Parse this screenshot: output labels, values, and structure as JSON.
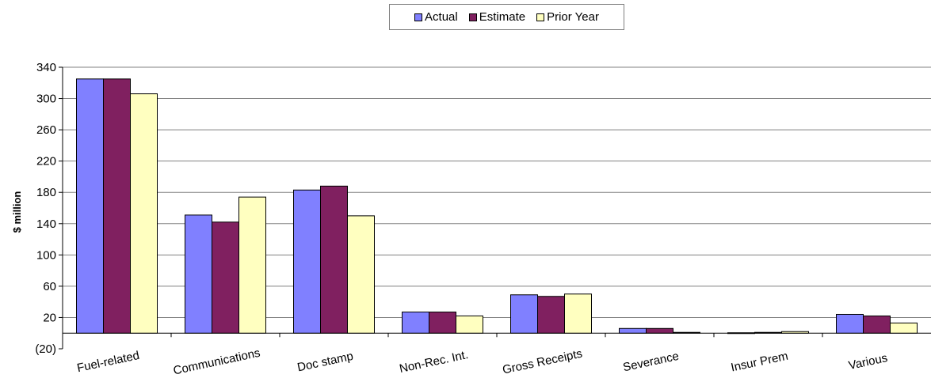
{
  "chart_data": {
    "type": "bar",
    "title": "",
    "xlabel": "",
    "ylabel": "$ million",
    "ylim": [
      -20,
      340
    ],
    "yticks": [
      -20,
      20,
      60,
      100,
      140,
      180,
      220,
      260,
      300,
      340
    ],
    "ytick_labels": [
      "(20)",
      "20",
      "60",
      "100",
      "140",
      "180",
      "220",
      "260",
      "300",
      "340"
    ],
    "grid": "horizontal",
    "legend_position": "top",
    "categories": [
      "Fuel-related",
      "Communications",
      "Doc stamp",
      "Non-Rec. Int.",
      "Gross Receipts",
      "Severance",
      "Insur Prem",
      "Various"
    ],
    "series": [
      {
        "name": "Actual",
        "color": "#8080FF",
        "values": [
          325,
          151,
          183,
          27,
          49,
          6,
          0.5,
          24
        ]
      },
      {
        "name": "Estimate",
        "color": "#802060",
        "values": [
          325,
          142,
          188,
          27,
          47,
          6,
          1,
          22
        ]
      },
      {
        "name": "Prior Year",
        "color": "#FFFFC0",
        "values": [
          306,
          174,
          150,
          22,
          50,
          1,
          2,
          13
        ]
      }
    ]
  }
}
